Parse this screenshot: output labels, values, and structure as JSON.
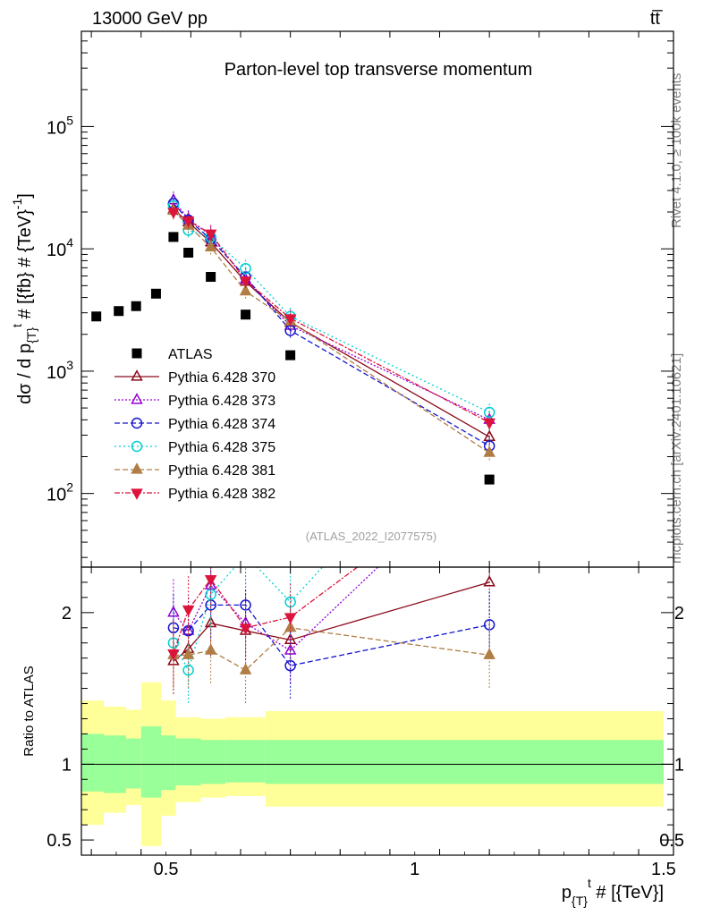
{
  "header": {
    "left_label": "13000 GeV pp",
    "right_label": "tt̅",
    "side_rivet": "Rivet 4.1.0, ≥ 100k events",
    "side_mcplots": "mcplots.cern.ch [arXiv:2401.10621]"
  },
  "chart_data": {
    "type": "scatter",
    "title": "Parton-level top transverse momentum",
    "analysis_id": "(ATLAS_2022_I2077575)",
    "xlabel": "p_{T}^{t} # [{TeV}]",
    "ylabel": "dσ / d p_{T}^{t} # [{fb} # {TeV}^{-1}]",
    "ratio_ylabel": "Ratio to ATLAS",
    "xlim": [
      0.33,
      1.52
    ],
    "ylim": [
      25,
      600000
    ],
    "ratio_ylim": [
      0.4,
      2.3
    ],
    "x_ticks": [
      {
        "v": 0.5,
        "label": "0.5"
      },
      {
        "v": 1,
        "label": "1"
      },
      {
        "v": 1.5,
        "label": "1.5"
      }
    ],
    "y_ticks": [
      {
        "exp": 2,
        "label": "2"
      },
      {
        "exp": 3,
        "label": "3"
      },
      {
        "exp": 4,
        "label": "4"
      },
      {
        "exp": 5,
        "label": "5"
      }
    ],
    "ratio_ticks": [
      {
        "v": 0.5,
        "label": "0.5"
      },
      {
        "v": 1,
        "label": "1"
      },
      {
        "v": 2,
        "label": "2"
      }
    ],
    "data": {
      "name": "ATLAS",
      "x": [
        0.36,
        0.405,
        0.44,
        0.48,
        0.515,
        0.545,
        0.59,
        0.66,
        0.75,
        1.15
      ],
      "y": [
        2800,
        3100,
        3400,
        4300,
        12500,
        9300,
        5900,
        2900,
        1350,
        130
      ]
    },
    "bands": {
      "edges": [
        0.33,
        0.375,
        0.42,
        0.45,
        0.49,
        0.52,
        0.57,
        0.62,
        0.7,
        0.8,
        1.5
      ],
      "green_low": [
        0.82,
        0.81,
        0.84,
        0.78,
        0.83,
        0.86,
        0.87,
        0.88,
        0.87,
        0.87
      ],
      "green_high": [
        1.2,
        1.19,
        1.17,
        1.25,
        1.19,
        1.17,
        1.16,
        1.16,
        1.16,
        1.16
      ],
      "yellow_low": [
        0.6,
        0.68,
        0.73,
        0.46,
        0.66,
        0.75,
        0.78,
        0.79,
        0.72,
        0.72
      ],
      "yellow_high": [
        1.42,
        1.38,
        1.36,
        1.54,
        1.42,
        1.31,
        1.3,
        1.31,
        1.35,
        1.35
      ]
    },
    "series": [
      {
        "name": "Pythia 6.428 370",
        "color": "#8b0a1a",
        "dash": "",
        "marker": "triangle-up-open",
        "x": [
          0.515,
          0.545,
          0.59,
          0.66,
          0.75,
          1.15
        ],
        "y": [
          21000,
          16500,
          11300,
          5400,
          2500,
          290
        ],
        "r": [
          1.68,
          1.76,
          1.93,
          1.88,
          1.82,
          2.2
        ]
      },
      {
        "name": "Pythia 6.428 373",
        "color": "#9400d3",
        "dash": "2,2",
        "marker": "triangle-up-open",
        "x": [
          0.515,
          0.545,
          0.59,
          0.66,
          0.75,
          1.15
        ],
        "y": [
          25000,
          17500,
          12900,
          5600,
          2350,
          400
        ],
        "r": [
          2.0,
          1.88,
          2.18,
          1.93,
          1.75,
          3.0
        ]
      },
      {
        "name": "Pythia 6.428 374",
        "color": "#1515d0",
        "dash": "6,3",
        "marker": "circle-open",
        "x": [
          0.515,
          0.545,
          0.59,
          0.66,
          0.75,
          1.15
        ],
        "y": [
          23500,
          17200,
          12000,
          5900,
          2150,
          245
        ],
        "r": [
          1.9,
          1.88,
          2.05,
          2.05,
          1.65,
          1.92
        ]
      },
      {
        "name": "Pythia 6.428 375",
        "color": "#00ced1",
        "dash": "2,3",
        "marker": "circle-open",
        "x": [
          0.515,
          0.545,
          0.59,
          0.66,
          0.75,
          1.15
        ],
        "y": [
          22500,
          14200,
          12500,
          6900,
          2800,
          460
        ],
        "r": [
          1.8,
          1.62,
          2.12,
          2.38,
          2.07,
          3.5
        ]
      },
      {
        "name": "Pythia 6.428 381",
        "color": "#b07d45",
        "dash": "6,3",
        "marker": "triangle-up-filled",
        "x": [
          0.515,
          0.545,
          0.59,
          0.66,
          0.75,
          1.15
        ],
        "y": [
          20500,
          15500,
          10300,
          4500,
          2550,
          215
        ],
        "r": [
          1.72,
          1.72,
          1.75,
          1.62,
          1.9,
          1.72
        ]
      },
      {
        "name": "Pythia 6.428 382",
        "color": "#dc143c",
        "dash": "6,2,2,2",
        "marker": "triangle-down-filled",
        "x": [
          0.515,
          0.545,
          0.59,
          0.66,
          0.75,
          1.15
        ],
        "y": [
          20000,
          17000,
          13300,
          5500,
          2700,
          380
        ],
        "r": [
          1.73,
          2.02,
          2.22,
          1.9,
          1.97,
          2.95
        ]
      }
    ]
  }
}
